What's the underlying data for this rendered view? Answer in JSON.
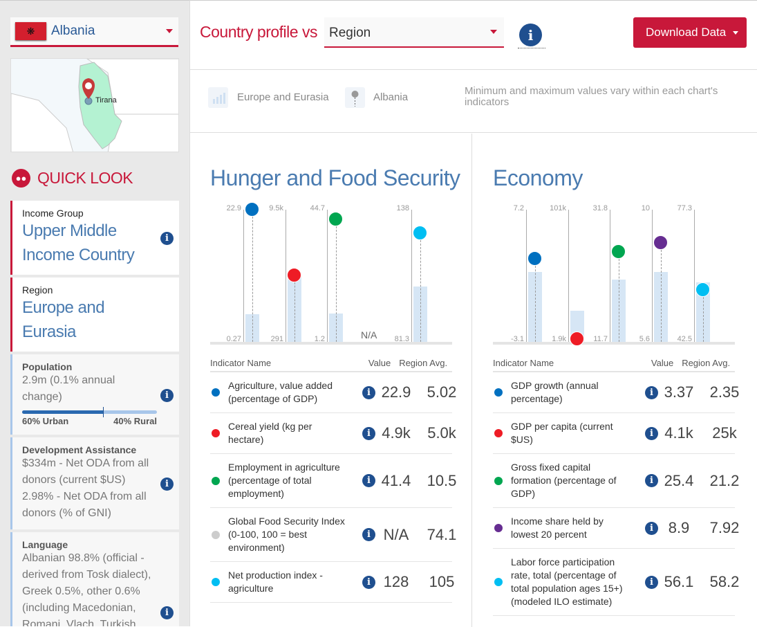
{
  "sidebar": {
    "country": "Albania",
    "map_label": "Tirana",
    "quick_look": "QUICK LOOK",
    "income": {
      "label": "Income Group",
      "value": "Upper Middle Income Country"
    },
    "region": {
      "label": "Region",
      "value": "Europe and Eurasia"
    },
    "population": {
      "label": "Population",
      "value": "2.9m (0.1% annual change)",
      "urban_pct": 60,
      "urban": "60% Urban",
      "rural": "40% Rural"
    },
    "assistance": {
      "label": "Development Assistance",
      "line1": "$334m - Net ODA from all donors (current $US)",
      "line2": "2.98% - Net ODA from all donors (% of GNI)"
    },
    "language": {
      "label": "Language",
      "value": "Albanian 98.8% (official - derived from Tosk dialect), Greek 0.5%, other 0.6% (including Macedonian, Romani, Vlach, Turkish,"
    }
  },
  "header": {
    "title": "Country profile vs",
    "compare": "Region",
    "download": "Download Data"
  },
  "legend": {
    "region": "Europe and Eurasia",
    "country": "Albania",
    "note": "Minimum and maximum values vary within each chart's indicators"
  },
  "colors": {
    "accent": "#c8183a",
    "info": "#1f4f8f",
    "bar": "#d6e6f5"
  },
  "table_headers": {
    "name": "Indicator Name",
    "value": "Value",
    "avg": "Region Avg."
  },
  "chart_data": [
    {
      "type": "bar",
      "title": "Hunger and Food Security",
      "indicators": [
        {
          "name": "Agriculture, value added (percentage of GDP)",
          "color": "#0070c0",
          "value": 22.9,
          "avg": 5.02,
          "value_label": "22.9",
          "avg_label": "5.02",
          "min": 0.27,
          "max": 22.9,
          "min_label": "0.27",
          "max_label": "22.9"
        },
        {
          "name": "Cereal yield (kg per hectare)",
          "color": "#ee1c25",
          "value": 4900,
          "avg": 5000,
          "value_label": "4.9k",
          "avg_label": "5.0k",
          "min": 291,
          "max": 9500,
          "min_label": "291",
          "max_label": "9.5k"
        },
        {
          "name": "Employment in agriculture (percentage of total employment)",
          "color": "#00a650",
          "value": 41.4,
          "avg": 10.5,
          "value_label": "41.4",
          "avg_label": "10.5",
          "min": 1.2,
          "max": 44.7,
          "min_label": "1.2",
          "max_label": "44.7"
        },
        {
          "name": "Global Food Security Index (0-100, 100 = best environment)",
          "color": "#cccccc",
          "value": null,
          "avg": 74.1,
          "value_label": "N/A",
          "avg_label": "74.1"
        },
        {
          "name": "Net production index - agriculture",
          "color": "#00bef2",
          "value": 128,
          "avg": 105,
          "value_label": "128",
          "avg_label": "105",
          "min": 81.3,
          "max": 138,
          "min_label": "81.3",
          "max_label": "138"
        }
      ]
    },
    {
      "type": "bar",
      "title": "Economy",
      "indicators": [
        {
          "name": "GDP growth (annual percentage)",
          "color": "#0070c0",
          "value": 3.37,
          "avg": 2.35,
          "value_label": "3.37",
          "avg_label": "2.35",
          "min": -3.1,
          "max": 7.2,
          "min_label": "-3.1",
          "max_label": "7.2"
        },
        {
          "name": "GDP per capita (current $US)",
          "color": "#ee1c25",
          "value": 4100,
          "avg": 25000,
          "value_label": "4.1k",
          "avg_label": "25k",
          "min": 1900,
          "max": 101000,
          "min_label": "1.9k",
          "max_label": "101k"
        },
        {
          "name": "Gross fixed capital formation (percentage of GDP)",
          "color": "#00a650",
          "value": 25.4,
          "avg": 21.2,
          "value_label": "25.4",
          "avg_label": "21.2",
          "min": 11.7,
          "max": 31.8,
          "min_label": "11.7",
          "max_label": "31.8"
        },
        {
          "name": "Income share held by lowest 20 percent",
          "color": "#662d91",
          "value": 8.9,
          "avg": 7.92,
          "value_label": "8.9",
          "avg_label": "7.92",
          "min": 5.6,
          "max": 10,
          "min_label": "5.6",
          "max_label": "10"
        },
        {
          "name": "Labor force participation rate, total (percentage of total population ages 15+) (modeled ILO estimate)",
          "color": "#00bef2",
          "value": 56.1,
          "avg": 58.2,
          "value_label": "56.1",
          "avg_label": "58.2",
          "min": 42.5,
          "max": 77.3,
          "min_label": "42.5",
          "max_label": "77.3"
        }
      ]
    }
  ]
}
